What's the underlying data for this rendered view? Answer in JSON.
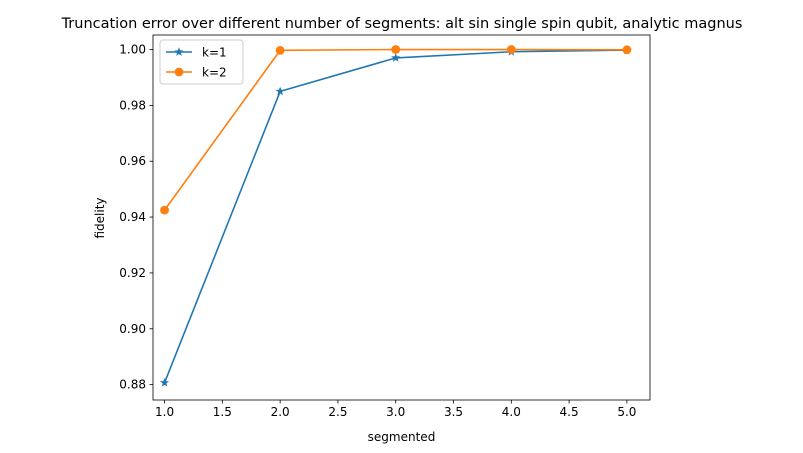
{
  "chart_data": {
    "type": "line",
    "title": "Truncation error over different number of segments: alt sin single spin qubit, analytic magnus",
    "xlabel": "segmented",
    "ylabel": "fidelity",
    "x": [
      1.0,
      2.0,
      3.0,
      4.0,
      5.0
    ],
    "xlim": [
      0.9,
      5.2
    ],
    "ylim": [
      0.8745,
      1.0052
    ],
    "xticks": [
      1.0,
      1.5,
      2.0,
      2.5,
      3.0,
      3.5,
      4.0,
      4.5,
      5.0
    ],
    "xtick_labels": [
      "1.0",
      "1.5",
      "2.0",
      "2.5",
      "3.0",
      "3.5",
      "4.0",
      "4.5",
      "5.0"
    ],
    "yticks": [
      0.88,
      0.9,
      0.92,
      0.94,
      0.96,
      0.98,
      1.0
    ],
    "ytick_labels": [
      "0.88",
      "0.90",
      "0.92",
      "0.94",
      "0.96",
      "0.98",
      "1.00"
    ],
    "grid": false,
    "legend_position": "top-left",
    "series": [
      {
        "name": "k=1",
        "values": [
          0.8807,
          0.985,
          0.997,
          0.9992,
          0.9998
        ],
        "color": "#1f77b4",
        "marker": "star"
      },
      {
        "name": "k=2",
        "values": [
          0.9425,
          0.9997,
          1.0,
          1.0,
          0.9999
        ],
        "color": "#ff7f0e",
        "marker": "circle"
      }
    ]
  }
}
